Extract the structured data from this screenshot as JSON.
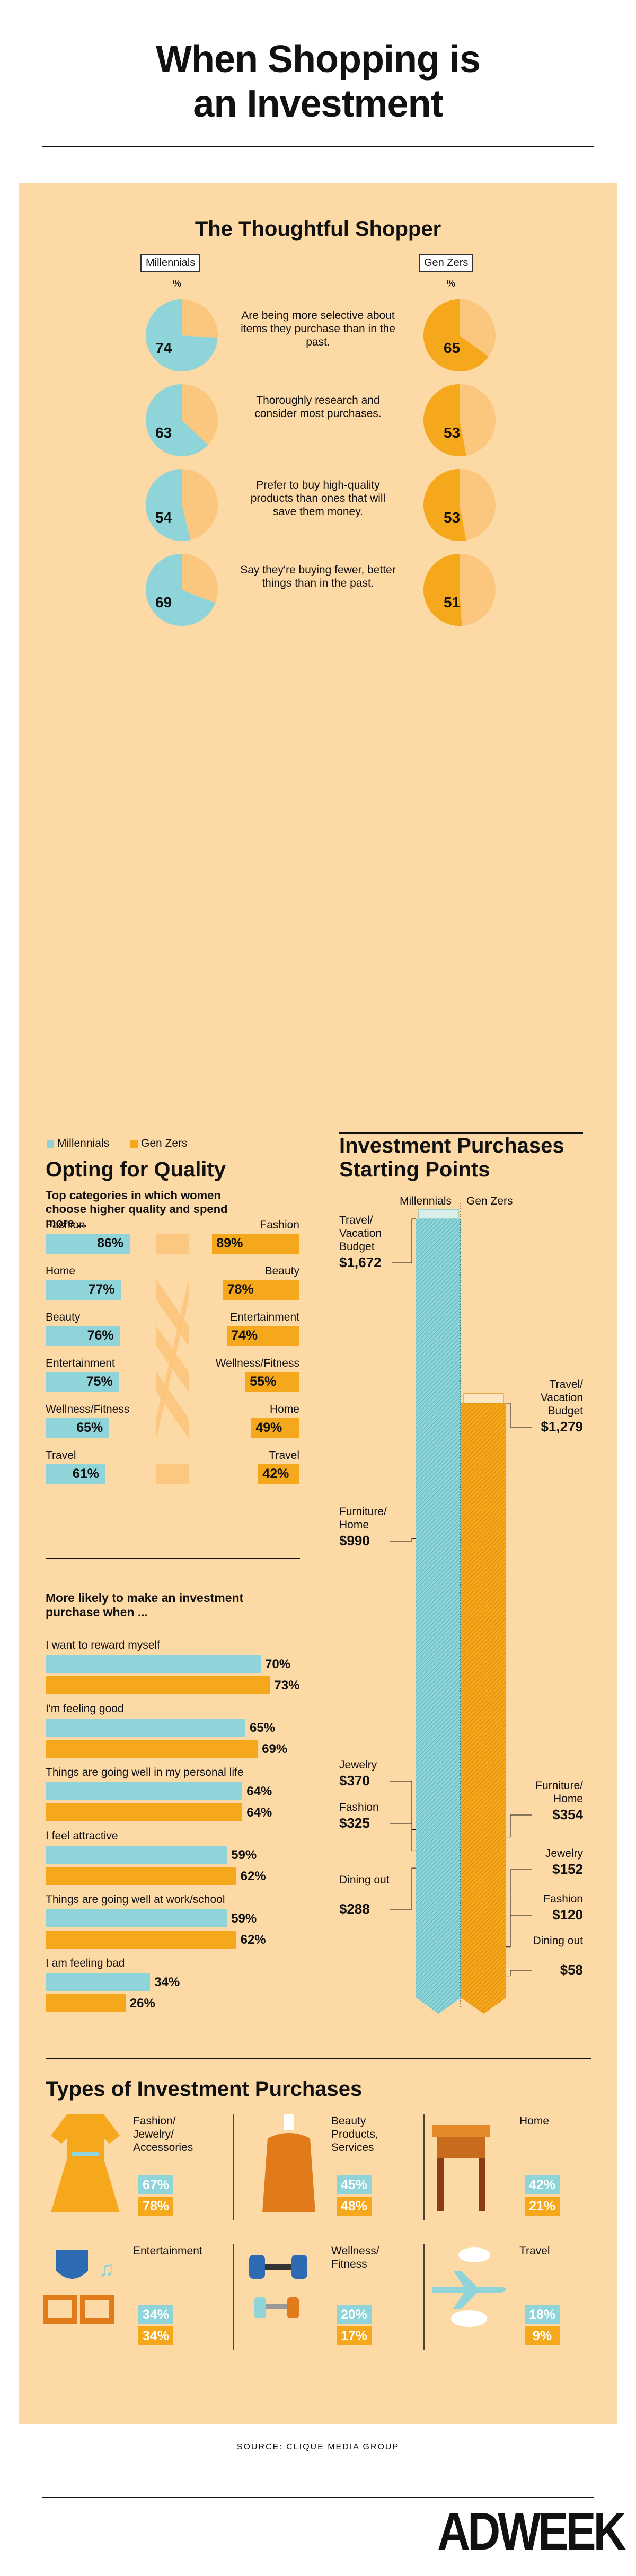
{
  "title_line1": "When Shopping is",
  "title_line2": "an Investment",
  "colors": {
    "millennials": "#8ed4d8",
    "genz": "#f6a81c",
    "panel": "#fdd9a6",
    "pie_bg": "#fbc67d"
  },
  "shopper": {
    "title": "The Thoughtful Shopper",
    "millennials_label": "Millennials",
    "genz_label": "Gen Zers",
    "percent_sign": "%",
    "rows": [
      {
        "text": "Are being more selective about items they purchase than in the past.",
        "millennials": 74,
        "genz": 65
      },
      {
        "text": "Thoroughly research and consider most purchases.",
        "millennials": 63,
        "genz": 53
      },
      {
        "text": "Prefer to buy high-quality products than ones that will save them money.",
        "millennials": 54,
        "genz": 53
      },
      {
        "text": "Say they're buying fewer, better things than in the past.",
        "millennials": 69,
        "genz": 51
      }
    ]
  },
  "legend": {
    "millennials": "Millennials",
    "genz": "Gen Zers"
  },
  "quality": {
    "title": "Opting for Quality",
    "subtitle": "Top categories in which women choose higher quality and spend more ...",
    "millennials": [
      {
        "label": "Fashion",
        "value": 86,
        "display": "86%"
      },
      {
        "label": "Home",
        "value": 77,
        "display": "77%"
      },
      {
        "label": "Beauty",
        "value": 76,
        "display": "76%"
      },
      {
        "label": "Entertainment",
        "value": 75,
        "display": "75%"
      },
      {
        "label": "Wellness/Fitness",
        "value": 65,
        "display": "65%"
      },
      {
        "label": "Travel",
        "value": 61,
        "display": "61%"
      }
    ],
    "genz": [
      {
        "label": "Fashion",
        "value": 89,
        "display": "89%"
      },
      {
        "label": "Beauty",
        "value": 78,
        "display": "78%"
      },
      {
        "label": "Entertainment",
        "value": 74,
        "display": "74%"
      },
      {
        "label": "Wellness/Fitness",
        "value": 55,
        "display": "55%"
      },
      {
        "label": "Home",
        "value": 49,
        "display": "49%"
      },
      {
        "label": "Travel",
        "value": 42,
        "display": "42%"
      }
    ]
  },
  "likely": {
    "title": "More likely to make an investment purchase when ...",
    "rows": [
      {
        "label": "I want to reward myself",
        "millennials": 70,
        "genz": 73,
        "m_display": "70%",
        "g_display": "73%"
      },
      {
        "label": "I'm feeling good",
        "millennials": 65,
        "genz": 69,
        "m_display": "65%",
        "g_display": "69%"
      },
      {
        "label": "Things are going well in my personal life",
        "millennials": 64,
        "genz": 64,
        "m_display": "64%",
        "g_display": "64%"
      },
      {
        "label": "I feel attractive",
        "millennials": 59,
        "genz": 62,
        "m_display": "59%",
        "g_display": "62%"
      },
      {
        "label": "Things are going well at work/school",
        "millennials": 59,
        "genz": 62,
        "m_display": "59%",
        "g_display": "62%"
      },
      {
        "label": "I am feeling bad",
        "millennials": 34,
        "genz": 26,
        "m_display": "34%",
        "g_display": "26%"
      }
    ]
  },
  "starting": {
    "title_line1": "Investment Purchases",
    "title_line2": "Starting  Points",
    "millennials_label": "Millennials",
    "genz_label": "Gen Zers",
    "millennials": [
      {
        "label": "Travel/ Vacation Budget",
        "value": 1672,
        "display": "$1,672"
      },
      {
        "label": "Furniture/ Home",
        "value": 990,
        "display": "$990"
      },
      {
        "label": "Jewelry",
        "value": 370,
        "display": "$370"
      },
      {
        "label": "Fashion",
        "value": 325,
        "display": "$325"
      },
      {
        "label": "Dining out",
        "value": 288,
        "display": "$288"
      }
    ],
    "genz": [
      {
        "label": "Travel/ Vacation Budget",
        "value": 1279,
        "display": "$1,279"
      },
      {
        "label": "Furniture/ Home",
        "value": 354,
        "display": "$354"
      },
      {
        "label": "Jewelry",
        "value": 152,
        "display": "$152"
      },
      {
        "label": "Fashion",
        "value": 120,
        "display": "$120"
      },
      {
        "label": "Dining out",
        "value": 58,
        "display": "$58"
      }
    ]
  },
  "types": {
    "title": "Types of Investment Purchases",
    "items": [
      {
        "label": "Fashion/ Jewelry/ Accessories",
        "icon": "dress-icon",
        "millennials": 67,
        "genz": 78,
        "m_display": "67%",
        "g_display": "78%"
      },
      {
        "label": "Beauty Products, Services",
        "icon": "lotion-bottle-icon",
        "millennials": 45,
        "genz": 48,
        "m_display": "45%",
        "g_display": "48%"
      },
      {
        "label": "Home",
        "icon": "side-table-icon",
        "millennials": 42,
        "genz": 21,
        "m_display": "42%",
        "g_display": "21%"
      },
      {
        "label": "Entertainment",
        "icon": "masks-glasses-icon",
        "millennials": 34,
        "genz": 34,
        "m_display": "34%",
        "g_display": "34%"
      },
      {
        "label": "Wellness/ Fitness",
        "icon": "dumbbells-icon",
        "millennials": 20,
        "genz": 17,
        "m_display": "20%",
        "g_display": "17%"
      },
      {
        "label": "Travel",
        "icon": "airplane-icon",
        "millennials": 18,
        "genz": 9,
        "m_display": "18%",
        "g_display": "9%"
      }
    ]
  },
  "source": "SOURCE: CLIQUE MEDIA GROUP",
  "logo": "ADWEEK",
  "chart_data": [
    {
      "type": "pie",
      "title": "The Thoughtful Shopper",
      "series": [
        {
          "name": "Millennials",
          "values": [
            74,
            63,
            54,
            69
          ]
        },
        {
          "name": "Gen Zers",
          "values": [
            65,
            53,
            53,
            51
          ]
        }
      ]
    },
    {
      "type": "bar",
      "title": "Opting for Quality",
      "series": [
        {
          "name": "Millennials",
          "categories": [
            "Fashion",
            "Home",
            "Beauty",
            "Entertainment",
            "Wellness/Fitness",
            "Travel"
          ],
          "values": [
            86,
            77,
            76,
            75,
            65,
            61
          ]
        },
        {
          "name": "Gen Zers",
          "categories": [
            "Fashion",
            "Beauty",
            "Entertainment",
            "Wellness/Fitness",
            "Home",
            "Travel"
          ],
          "values": [
            89,
            78,
            74,
            55,
            49,
            42
          ]
        }
      ]
    },
    {
      "type": "bar",
      "title": "More likely to make an investment purchase when ...",
      "categories": [
        "I want to reward myself",
        "I'm feeling good",
        "Things are going well in my personal life",
        "I feel attractive",
        "Things are going well at work/school",
        "I am feeling bad"
      ],
      "series": [
        {
          "name": "Millennials",
          "values": [
            70,
            65,
            64,
            59,
            59,
            34
          ]
        },
        {
          "name": "Gen Zers",
          "values": [
            73,
            69,
            64,
            62,
            62,
            26
          ]
        }
      ]
    },
    {
      "type": "bar",
      "title": "Investment Purchases Starting  Points",
      "categories": [
        "Travel/ Vacation Budget",
        "Furniture/ Home",
        "Jewelry",
        "Fashion",
        "Dining out"
      ],
      "series": [
        {
          "name": "Millennials",
          "values": [
            1672,
            990,
            370,
            325,
            288
          ]
        },
        {
          "name": "Gen Zers",
          "values": [
            1279,
            354,
            152,
            120,
            58
          ]
        }
      ]
    },
    {
      "type": "bar",
      "title": "Types of Investment Purchases",
      "categories": [
        "Fashion/ Jewelry/ Accessories",
        "Beauty Products, Services",
        "Home",
        "Entertainment",
        "Wellness/ Fitness",
        "Travel"
      ],
      "series": [
        {
          "name": "Millennials",
          "values": [
            67,
            45,
            42,
            34,
            20,
            18
          ]
        },
        {
          "name": "Gen Zers",
          "values": [
            78,
            48,
            21,
            34,
            17,
            9
          ]
        }
      ]
    }
  ]
}
